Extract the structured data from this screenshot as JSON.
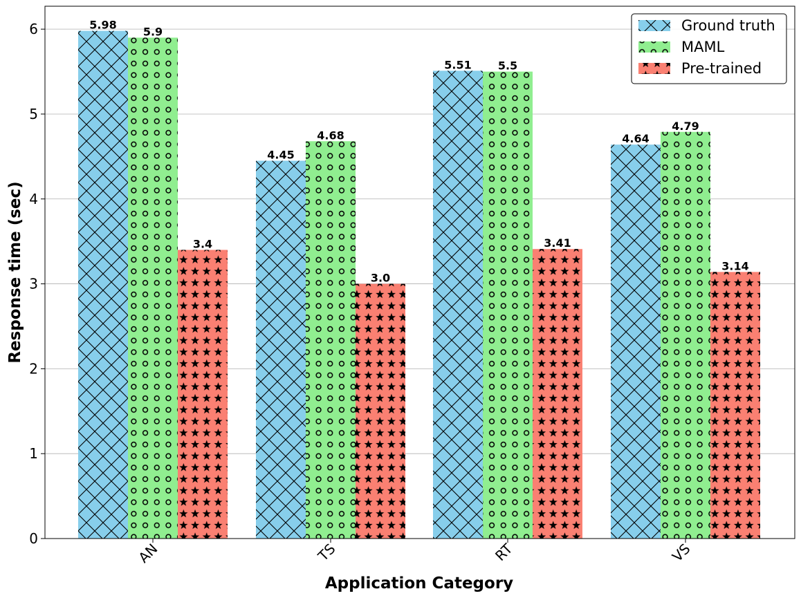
{
  "chart_data": {
    "type": "bar",
    "title": "",
    "xlabel": "Application Category",
    "ylabel": "Response time (sec)",
    "categories": [
      "AN",
      "TS",
      "RT",
      "VS"
    ],
    "ylim": [
      0,
      6.27
    ],
    "yticks": [
      0,
      1,
      2,
      3,
      4,
      5,
      6
    ],
    "grid": "y-major",
    "legend_position": "top-right",
    "series": [
      {
        "name": "Ground truth",
        "values": [
          5.98,
          4.45,
          5.51,
          4.64
        ],
        "labels": [
          "5.98",
          "4.45",
          "5.51",
          "4.64"
        ],
        "color": "#87CEEB",
        "hatch": "crosshatch-x"
      },
      {
        "name": "MAML",
        "values": [
          5.9,
          4.68,
          5.5,
          4.79
        ],
        "labels": [
          "5.9",
          "4.68",
          "5.5",
          "4.79"
        ],
        "color": "#90EE90",
        "hatch": "circles"
      },
      {
        "name": "Pre-trained",
        "values": [
          3.4,
          3.0,
          3.41,
          3.14
        ],
        "labels": [
          "3.4",
          "3.0",
          "3.41",
          "3.14"
        ],
        "color": "#FA8072",
        "hatch": "stars"
      }
    ]
  }
}
